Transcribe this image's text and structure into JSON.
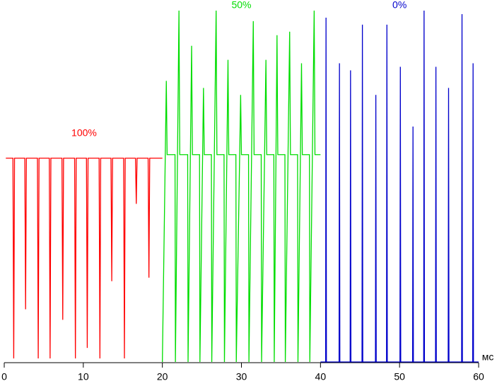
{
  "chart_data": {
    "type": "line",
    "x_label": "мс",
    "xlim": [
      0,
      60
    ],
    "xticks": [
      0,
      10,
      20,
      30,
      40,
      50,
      60
    ],
    "ylim": [
      0,
      100
    ],
    "series": [
      {
        "name": "100%",
        "color": "#ff0000",
        "x": [
          0.2,
          1.1,
          1.2,
          1.3,
          2.6,
          2.7,
          2.8,
          4.2,
          4.3,
          4.4,
          5.7,
          5.8,
          5.9,
          7.3,
          7.4,
          7.5,
          8.9,
          9.0,
          9.1,
          10.4,
          10.5,
          10.6,
          12.0,
          12.1,
          12.2,
          13.5,
          13.6,
          13.7,
          15.1,
          15.2,
          15.3,
          16.6,
          16.7,
          16.8,
          18.2,
          18.3,
          18.4,
          20.0
        ],
        "values": [
          58,
          58,
          1,
          58,
          58,
          15,
          58,
          58,
          1,
          58,
          58,
          1,
          58,
          58,
          12,
          58,
          58,
          1,
          58,
          58,
          4,
          58,
          58,
          1,
          58,
          58,
          23,
          58,
          58,
          1,
          58,
          58,
          45,
          58,
          58,
          24,
          58,
          58
        ]
      },
      {
        "name": "50%",
        "color": "#00dd00",
        "x": [
          20.0,
          20.5,
          20.6,
          21.6,
          21.65,
          22.1,
          22.2,
          23.2,
          23.25,
          23.7,
          23.8,
          24.7,
          24.75,
          25.2,
          25.3,
          26.2,
          26.25,
          26.8,
          26.9,
          27.8,
          27.85,
          28.3,
          28.4,
          29.3,
          29.35,
          29.9,
          30.0,
          30.9,
          30.95,
          31.5,
          31.6,
          32.5,
          32.55,
          33.1,
          33.2,
          34.1,
          34.15,
          34.5,
          34.6,
          35.5,
          35.55,
          36.1,
          36.2,
          37.1,
          37.15,
          37.6,
          37.7,
          38.6,
          38.65,
          39.2,
          39.3,
          40.0
        ],
        "values": [
          0,
          80,
          59,
          59,
          0,
          100,
          59,
          59,
          0,
          90,
          59,
          59,
          0,
          78,
          59,
          59,
          0,
          100,
          59,
          59,
          0,
          86,
          59,
          59,
          0,
          76,
          59,
          59,
          0,
          97,
          59,
          59,
          0,
          86,
          59,
          59,
          0,
          93,
          59,
          59,
          0,
          94,
          59,
          59,
          0,
          85,
          59,
          59,
          0,
          100,
          59,
          59
        ]
      },
      {
        "name": "0%",
        "color": "#0000cc",
        "x": [
          40.0,
          40.65,
          40.7,
          40.75,
          42.35,
          42.4,
          42.45,
          43.75,
          43.8,
          43.85,
          45.25,
          45.3,
          45.35,
          46.95,
          47.0,
          47.05,
          48.35,
          48.4,
          48.45,
          50.05,
          50.1,
          50.15,
          51.65,
          51.7,
          51.75,
          53.05,
          53.1,
          53.15,
          54.55,
          54.6,
          54.65,
          56.15,
          56.2,
          56.25,
          57.85,
          57.9,
          57.95,
          59.25,
          59.3,
          59.35,
          60.0
        ],
        "values": [
          0,
          0,
          98,
          0,
          0,
          85,
          0,
          0,
          83,
          0,
          0,
          96,
          0,
          0,
          76,
          0,
          0,
          96,
          0,
          0,
          84,
          0,
          0,
          67,
          0,
          0,
          100,
          0,
          0,
          84,
          0,
          0,
          78,
          0,
          0,
          99,
          0,
          0,
          85,
          0,
          0
        ]
      }
    ]
  }
}
